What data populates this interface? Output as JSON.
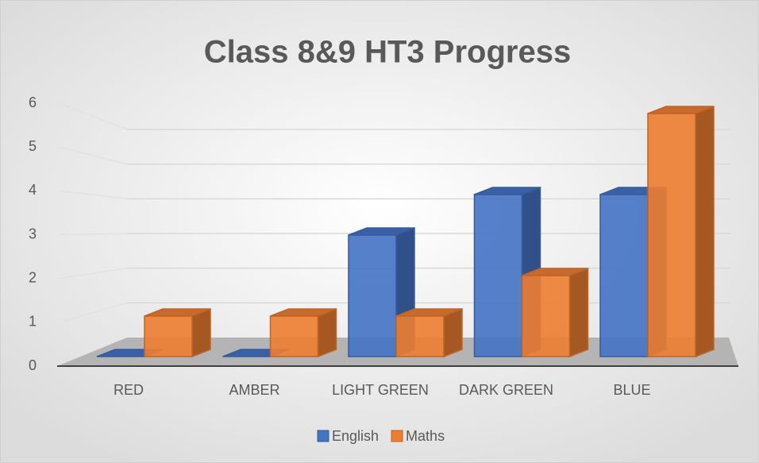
{
  "chart_data": {
    "type": "bar3d",
    "title": "Class 8&9 HT3 Progress",
    "categories": [
      "RED",
      "AMBER",
      "LIGHT GREEN",
      "DARK GREEN",
      "BLUE"
    ],
    "series": [
      {
        "name": "English",
        "color": "#4472c4",
        "values": [
          0,
          0,
          3,
          4,
          4
        ]
      },
      {
        "name": "Maths",
        "color": "#ed7d31",
        "values": [
          1,
          1,
          1,
          2,
          6
        ]
      }
    ],
    "ylim": [
      0,
      6
    ],
    "yticks": [
      0,
      1,
      2,
      3,
      4,
      5,
      6
    ],
    "grid": true,
    "legend": "bottom"
  }
}
